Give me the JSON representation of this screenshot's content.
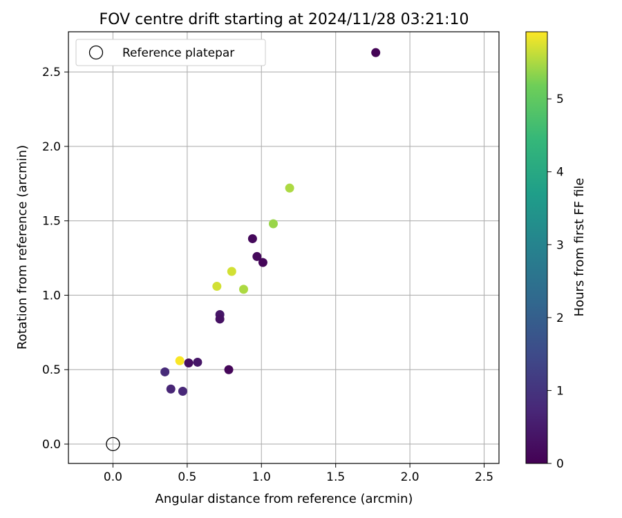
{
  "chart_data": {
    "type": "scatter",
    "title": "FOV centre drift starting at 2024/11/28 03:21:10",
    "xlabel": "Angular distance from reference (arcmin)",
    "ylabel": "Rotation from reference (arcmin)",
    "xlim": [
      -0.3,
      2.6
    ],
    "ylim": [
      -0.13,
      2.77
    ],
    "xticks": [
      0.0,
      0.5,
      1.0,
      1.5,
      2.0,
      2.5
    ],
    "xtick_labels": [
      "0.0",
      "0.5",
      "1.0",
      "1.5",
      "2.0",
      "2.5"
    ],
    "yticks": [
      0.0,
      0.5,
      1.0,
      1.5,
      2.0,
      2.5
    ],
    "ytick_labels": [
      "0.0",
      "0.5",
      "1.0",
      "1.5",
      "2.0",
      "2.5"
    ],
    "grid": true,
    "legend": {
      "position": "top-left",
      "entries": [
        "Reference platepar"
      ]
    },
    "reference_point": {
      "x": 0.0,
      "y": 0.0
    },
    "points": [
      {
        "x": 1.77,
        "y": 2.63,
        "hours": 0.05
      },
      {
        "x": 1.19,
        "y": 1.72,
        "hours": 5.5
      },
      {
        "x": 1.08,
        "y": 1.48,
        "hours": 5.4
      },
      {
        "x": 0.94,
        "y": 1.38,
        "hours": 0.15
      },
      {
        "x": 0.97,
        "y": 1.26,
        "hours": 0.15
      },
      {
        "x": 1.01,
        "y": 1.22,
        "hours": 0.1
      },
      {
        "x": 0.8,
        "y": 1.16,
        "hours": 5.7
      },
      {
        "x": 0.7,
        "y": 1.06,
        "hours": 5.7
      },
      {
        "x": 0.88,
        "y": 1.04,
        "hours": 5.5
      },
      {
        "x": 0.72,
        "y": 0.87,
        "hours": 0.4
      },
      {
        "x": 0.72,
        "y": 0.84,
        "hours": 0.3
      },
      {
        "x": 0.45,
        "y": 0.56,
        "hours": 5.9
      },
      {
        "x": 0.51,
        "y": 0.545,
        "hours": 0.25
      },
      {
        "x": 0.57,
        "y": 0.55,
        "hours": 0.4
      },
      {
        "x": 0.78,
        "y": 0.5,
        "hours": 0.1
      },
      {
        "x": 0.35,
        "y": 0.485,
        "hours": 0.8
      },
      {
        "x": 0.39,
        "y": 0.37,
        "hours": 0.7
      },
      {
        "x": 0.47,
        "y": 0.355,
        "hours": 0.75
      }
    ],
    "colorbar": {
      "label": "Hours from first FF file",
      "range": [
        0,
        5.92
      ],
      "ticks": [
        0,
        1,
        2,
        3,
        4,
        5
      ],
      "tick_labels": [
        "0",
        "1",
        "2",
        "3",
        "4",
        "5"
      ],
      "colormap": "viridis"
    }
  }
}
